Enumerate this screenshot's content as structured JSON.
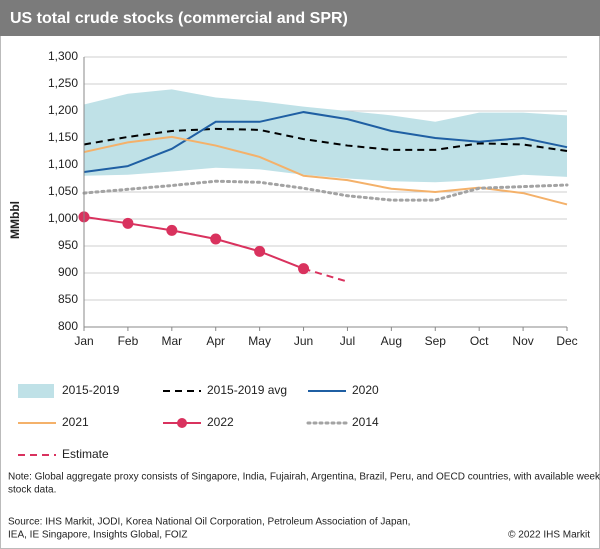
{
  "chart_data": {
    "type": "line",
    "title": "US total crude stocks (commercial and SPR)",
    "y_label": "MMbbl",
    "categories": [
      "Jan",
      "Feb",
      "Mar",
      "Apr",
      "May",
      "Jun",
      "Jul",
      "Aug",
      "Sep",
      "Oct",
      "Nov",
      "Dec"
    ],
    "ylim": [
      800,
      1300
    ],
    "yticks": [
      800,
      850,
      900,
      950,
      {
        "value": 1000,
        "label": "1,000"
      },
      {
        "value": 1050,
        "label": "1,050"
      },
      {
        "value": 1100,
        "label": "1,100"
      },
      {
        "value": 1150,
        "label": "1,150"
      },
      {
        "value": 1200,
        "label": "1,200"
      },
      {
        "value": 1250,
        "label": "1,250"
      },
      {
        "value": 1300,
        "label": "1,300"
      }
    ],
    "grid": true,
    "series": [
      {
        "name": "2015-2019",
        "kind": "band",
        "color": "#bfe1e7",
        "low": [
          1080,
          1082,
          1088,
          1095,
          1092,
          1082,
          1075,
          1070,
          1068,
          1072,
          1082,
          1078
        ],
        "high": [
          1212,
          1232,
          1240,
          1225,
          1218,
          1208,
          1200,
          1192,
          1180,
          1197,
          1197,
          1192
        ]
      },
      {
        "name": "2015-2019 avg",
        "color": "#000000",
        "dash": "dashed",
        "values": [
          1138,
          1152,
          1163,
          1167,
          1165,
          1148,
          1136,
          1128,
          1128,
          1140,
          1138,
          1126
        ]
      },
      {
        "name": "2020",
        "color": "#1f5fa3",
        "values": [
          1087,
          1098,
          1130,
          1180,
          1180,
          1198,
          1185,
          1163,
          1150,
          1143,
          1150,
          1133
        ]
      },
      {
        "name": "2021",
        "color": "#f4b16a",
        "values": [
          1124,
          1142,
          1152,
          1136,
          1115,
          1080,
          1072,
          1056,
          1050,
          1058,
          1048,
          1027
        ]
      },
      {
        "name": "2022",
        "color": "#d9325e",
        "markers": true,
        "values": [
          1004,
          992,
          979,
          963,
          940,
          908,
          null,
          null,
          null,
          null,
          null,
          null
        ]
      },
      {
        "name": "2014",
        "color": "#a3a3a3",
        "dash": "dotted",
        "values": [
          1048,
          1055,
          1062,
          1070,
          1068,
          1057,
          1043,
          1035,
          1035,
          1057,
          1060,
          1063
        ]
      },
      {
        "name": "Estimate",
        "color": "#d9325e",
        "dash": "dashed",
        "values": [
          null,
          null,
          null,
          null,
          null,
          908,
          884,
          null,
          null,
          null,
          null,
          null
        ]
      }
    ],
    "note": [
      "Note: Global aggregate proxy consists of Singapore, India, Fujairah, Argentina, Brazil, Peru, and OECD countries, with available weekly and other",
      "stock data."
    ],
    "source": [
      "Source: IHS Markit, JODI, Korea National Oil Corporation, Petroleum Association of Japan,",
      "IEA, IE Singapore, Insights Global, FOIZ"
    ],
    "copyright": "© 2022 IHS Markit"
  }
}
